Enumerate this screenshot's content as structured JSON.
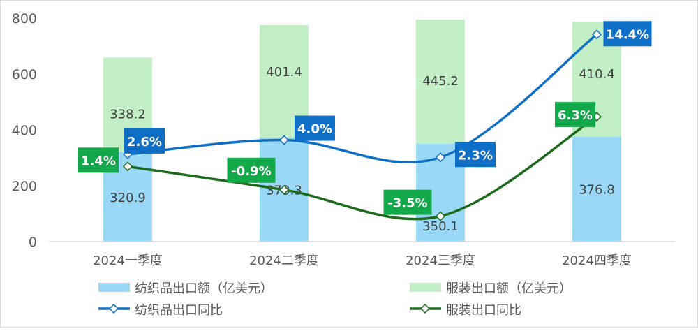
{
  "chart_data": {
    "type": "bar",
    "stacked": true,
    "categories": [
      "2024一季度",
      "2024二季度",
      "2024三季度",
      "2024四季度"
    ],
    "ylim": [
      0,
      800
    ],
    "yticks": [
      0,
      200,
      400,
      600,
      800
    ],
    "y2lim": [
      -6,
      16
    ],
    "y2_axis_visible": false,
    "grid": false,
    "legend_position": "bottom",
    "bar_series": [
      {
        "name": "纺织品出口额（亿美元）",
        "values": [
          320.9,
          373.3,
          350.1,
          376.8
        ],
        "color": "#99d9f7",
        "labels": [
          "320.9",
          "373.3",
          "350.1",
          "376.8"
        ]
      },
      {
        "name": "服装出口额（亿美元）",
        "values": [
          338.2,
          401.4,
          445.2,
          410.4
        ],
        "color": "#c3efc6",
        "labels": [
          "338.2",
          "401.4",
          "445.2",
          "410.4"
        ]
      }
    ],
    "line_series": [
      {
        "name": "纺织品出口同比",
        "type": "line",
        "axis": "secondary",
        "smooth": true,
        "unit": "%",
        "values": [
          2.6,
          4.0,
          2.3,
          14.4
        ],
        "labels": [
          "2.6%",
          "4.0%",
          "2.3%",
          "14.4%"
        ],
        "color": "#0f6fc6"
      },
      {
        "name": "服装出口同比",
        "type": "line",
        "axis": "secondary",
        "smooth": true,
        "unit": "%",
        "values": [
          1.4,
          -0.9,
          -3.5,
          6.3
        ],
        "labels": [
          "1.4%",
          "-0.9%",
          "-3.5%",
          "6.3%"
        ],
        "color": "#1e6b1e",
        "label_color": "#13a84a"
      }
    ]
  }
}
